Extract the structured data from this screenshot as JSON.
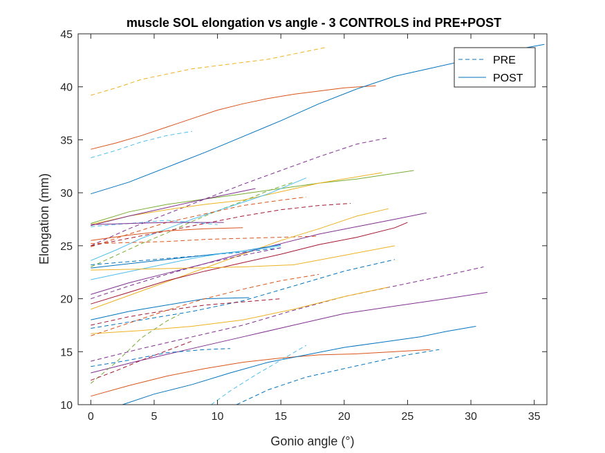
{
  "chart_data": {
    "type": "line",
    "title": "muscle SOL elongation vs angle - 3 CONTROLS ind PRE+POST",
    "xlabel": "Gonio angle (°)",
    "ylabel": "Elongation (mm)",
    "xlim": [
      -1,
      36
    ],
    "ylim": [
      10,
      45
    ],
    "xticks": [
      0,
      5,
      10,
      15,
      20,
      25,
      30,
      35
    ],
    "yticks": [
      10,
      15,
      20,
      25,
      30,
      35,
      40,
      45
    ],
    "xtick_labels": [
      "0",
      "5",
      "10",
      "15",
      "20",
      "25",
      "30",
      "35"
    ],
    "ytick_labels": [
      "10",
      "15",
      "20",
      "25",
      "30",
      "35",
      "40",
      "45"
    ],
    "grid": false,
    "legend": {
      "position": "top-right",
      "entries": [
        {
          "label": "PRE",
          "style": "dashed",
          "color": "#0072BD"
        },
        {
          "label": "POST",
          "style": "solid",
          "color": "#0072BD"
        }
      ]
    },
    "series": [
      {
        "style": "dashed",
        "color": "#EDB120",
        "x": [
          0,
          2,
          4,
          6,
          8,
          10,
          12,
          14,
          16,
          18.5
        ],
        "y": [
          39.2,
          39.9,
          40.7,
          41.2,
          41.7,
          42.0,
          42.3,
          42.6,
          43.1,
          43.7
        ]
      },
      {
        "style": "solid",
        "color": "#D95319",
        "x": [
          0,
          2,
          4,
          6,
          8,
          10,
          12,
          14,
          16,
          18,
          20,
          22.5
        ],
        "y": [
          34.1,
          34.7,
          35.4,
          36.2,
          37.0,
          37.8,
          38.4,
          38.9,
          39.3,
          39.6,
          39.9,
          40.1
        ]
      },
      {
        "style": "dashed",
        "color": "#4DBEEE",
        "x": [
          0,
          2,
          4,
          6,
          8
        ],
        "y": [
          33.3,
          34.0,
          34.8,
          35.4,
          35.8
        ]
      },
      {
        "style": "solid",
        "color": "#0072BD",
        "x": [
          0,
          3,
          6,
          9,
          12,
          15,
          18,
          21,
          24,
          27,
          30,
          33,
          35.8
        ],
        "y": [
          29.9,
          31.0,
          32.4,
          33.8,
          35.3,
          36.8,
          38.4,
          39.8,
          41.0,
          41.8,
          42.6,
          43.4,
          44.0
        ]
      },
      {
        "style": "dashed",
        "color": "#7E2F8E",
        "x": [
          0,
          3,
          6,
          9,
          12,
          15,
          18,
          21,
          23.5
        ],
        "y": [
          25.0,
          26.6,
          28.0,
          29.4,
          30.8,
          32.1,
          33.4,
          34.6,
          35.2
        ]
      },
      {
        "style": "solid",
        "color": "#77AC30",
        "x": [
          0,
          3,
          6,
          9,
          12,
          15,
          18,
          21,
          25.5
        ],
        "y": [
          27.1,
          28.2,
          28.9,
          29.4,
          29.9,
          30.4,
          30.9,
          31.3,
          32.1
        ]
      },
      {
        "style": "solid",
        "color": "#EDB120",
        "x": [
          0,
          3,
          6,
          9,
          12,
          15,
          18,
          21,
          23
        ],
        "y": [
          27.0,
          27.8,
          28.4,
          28.9,
          29.3,
          30.1,
          30.9,
          31.5,
          31.9
        ]
      },
      {
        "style": "solid",
        "color": "#7E2F8E",
        "x": [
          0,
          3,
          6,
          9,
          13
        ],
        "y": [
          26.9,
          27.8,
          28.6,
          29.4,
          30.4
        ]
      },
      {
        "style": "dashed",
        "color": "#77AC30",
        "x": [
          0,
          2,
          4,
          6,
          8,
          10,
          12,
          14,
          16
        ],
        "y": [
          23.0,
          24.1,
          25.2,
          26.2,
          27.3,
          28.3,
          29.2,
          30.2,
          31.0
        ]
      },
      {
        "style": "solid",
        "color": "#4DBEEE",
        "x": [
          0,
          2,
          4,
          6,
          8,
          10,
          12,
          14,
          17
        ],
        "y": [
          23.6,
          24.6,
          25.7,
          26.6,
          27.5,
          28.3,
          29.1,
          29.9,
          31.4
        ]
      },
      {
        "style": "dashed",
        "color": "#D95319",
        "x": [
          0,
          3,
          6,
          9,
          12,
          15,
          17
        ],
        "y": [
          24.9,
          26.1,
          27.2,
          28.0,
          28.8,
          29.3,
          29.6
        ]
      },
      {
        "style": "dashed",
        "color": "#A2142F",
        "x": [
          0,
          3,
          6,
          9,
          12,
          15,
          18,
          20.5
        ],
        "y": [
          25.0,
          25.7,
          26.4,
          27.1,
          27.8,
          28.4,
          28.8,
          29.0
        ]
      },
      {
        "style": "dashed",
        "color": "#4DBEEE",
        "x": [
          0,
          2,
          4,
          6,
          8,
          10
        ],
        "y": [
          26.8,
          27.0,
          27.2,
          27.4,
          27.2,
          27.0
        ]
      },
      {
        "style": "solid",
        "color": "#7E2F8E",
        "x": [
          0,
          3,
          6,
          9,
          10.5
        ],
        "y": [
          27.0,
          27.1,
          27.2,
          27.2,
          27.2
        ]
      },
      {
        "style": "solid",
        "color": "#D95319",
        "x": [
          0,
          3,
          6,
          9,
          12
        ],
        "y": [
          25.5,
          26.0,
          26.4,
          26.6,
          26.7
        ]
      },
      {
        "style": "dashed",
        "color": "#D95319",
        "x": [
          0,
          3,
          6,
          9,
          12,
          15,
          18
        ],
        "y": [
          25.2,
          25.3,
          25.4,
          25.6,
          25.7,
          25.8,
          25.9
        ]
      },
      {
        "style": "solid",
        "color": "#EDB120",
        "x": [
          0,
          3,
          6,
          9,
          12,
          15,
          18,
          21,
          23.5
        ],
        "y": [
          19.0,
          20.3,
          21.6,
          22.9,
          24.2,
          25.5,
          26.6,
          27.8,
          28.5
        ]
      },
      {
        "style": "solid",
        "color": "#7E2F8E",
        "x": [
          0,
          3,
          6,
          9,
          12,
          15,
          18,
          21,
          24,
          26.5
        ],
        "y": [
          20.4,
          21.5,
          22.4,
          23.3,
          24.3,
          25.2,
          26.1,
          26.8,
          27.5,
          28.1
        ]
      },
      {
        "style": "solid",
        "color": "#A2142F",
        "x": [
          0,
          3,
          6,
          9,
          12,
          15,
          18,
          21,
          24,
          25
        ],
        "y": [
          19.5,
          20.6,
          21.7,
          22.6,
          23.4,
          24.2,
          25.1,
          25.8,
          26.7,
          27.2
        ]
      },
      {
        "style": "solid",
        "color": "#0072BD",
        "x": [
          0,
          3,
          6,
          9,
          12,
          15
        ],
        "y": [
          22.9,
          23.3,
          23.7,
          24.1,
          24.5,
          25.1
        ]
      },
      {
        "style": "dashed",
        "color": "#0072BD",
        "x": [
          0,
          3,
          6,
          9,
          12,
          15
        ],
        "y": [
          23.2,
          23.5,
          23.8,
          24.1,
          24.4,
          24.8
        ]
      },
      {
        "style": "solid",
        "color": "#4DBEEE",
        "x": [
          0,
          2,
          4,
          6,
          8,
          10,
          12,
          14,
          15
        ],
        "y": [
          21.8,
          22.3,
          22.8,
          23.3,
          23.8,
          24.2,
          24.5,
          24.8,
          25.0
        ]
      },
      {
        "style": "dashed",
        "color": "#7E2F8E",
        "x": [
          0,
          3,
          6,
          9,
          12,
          15
        ],
        "y": [
          20.0,
          21.2,
          22.3,
          23.3,
          24.1,
          24.8
        ]
      },
      {
        "style": "solid",
        "color": "#EDB120",
        "x": [
          0,
          4,
          8,
          12,
          16,
          20,
          24
        ],
        "y": [
          22.7,
          22.8,
          22.9,
          23.0,
          23.2,
          24.1,
          25.0
        ]
      },
      {
        "style": "dashed",
        "color": "#0072BD",
        "x": [
          0,
          4,
          8,
          12,
          16,
          20,
          24
        ],
        "y": [
          17.2,
          18.0,
          18.8,
          19.8,
          21.2,
          22.6,
          23.7
        ]
      },
      {
        "style": "dashed",
        "color": "#7E2F8E",
        "x": [
          0,
          4,
          8,
          12,
          16,
          20,
          24,
          28,
          31
        ],
        "y": [
          14.1,
          15.3,
          16.4,
          17.5,
          18.9,
          20.2,
          21.2,
          22.2,
          23.0
        ]
      },
      {
        "style": "solid",
        "color": "#7E2F8E",
        "x": [
          0,
          4,
          8,
          12,
          16,
          20,
          24,
          28,
          31.3
        ],
        "y": [
          13.0,
          14.2,
          15.3,
          16.4,
          17.5,
          18.6,
          19.3,
          20.0,
          20.6
        ]
      },
      {
        "style": "solid",
        "color": "#EDB120",
        "x": [
          0,
          4,
          8,
          12,
          16,
          20,
          23.5
        ],
        "y": [
          16.7,
          17.0,
          17.4,
          18.0,
          19.0,
          20.2,
          21.1
        ]
      },
      {
        "style": "dashed",
        "color": "#A2142F",
        "x": [
          0,
          3,
          6,
          9,
          12,
          15
        ],
        "y": [
          17.5,
          18.3,
          18.9,
          19.4,
          19.7,
          20.0
        ]
      },
      {
        "style": "solid",
        "color": "#0072BD",
        "x": [
          0,
          3,
          6,
          9,
          12.5
        ],
        "y": [
          18.0,
          18.8,
          19.4,
          20.0,
          20.1
        ]
      },
      {
        "style": "dashed",
        "color": "#D95319",
        "x": [
          0,
          3,
          6,
          9,
          12,
          15,
          18
        ],
        "y": [
          16.5,
          17.7,
          18.9,
          20.0,
          20.9,
          21.7,
          22.3
        ]
      },
      {
        "style": "dashed",
        "color": "#77AC30",
        "x": [
          0,
          2,
          4,
          6,
          7
        ],
        "y": [
          12.0,
          14.0,
          16.3,
          17.9,
          18.5
        ]
      },
      {
        "style": "dashed",
        "color": "#0072BD",
        "x": [
          0,
          3,
          6,
          9,
          11
        ],
        "y": [
          13.6,
          14.2,
          14.9,
          15.2,
          15.3
        ]
      },
      {
        "style": "dashed",
        "color": "#A2142F",
        "x": [
          0,
          2,
          4,
          6,
          8
        ],
        "y": [
          12.3,
          13.2,
          14.2,
          15.1,
          16.0
        ]
      },
      {
        "style": "solid",
        "color": "#D95319",
        "x": [
          0,
          3,
          6,
          9,
          12,
          15,
          18,
          21,
          24,
          26.8
        ],
        "y": [
          10.8,
          11.8,
          12.7,
          13.4,
          14.0,
          14.4,
          14.7,
          14.8,
          15.0,
          15.2
        ]
      },
      {
        "style": "solid",
        "color": "#0072BD",
        "x": [
          2.5,
          5,
          8,
          11,
          14,
          17,
          20,
          23,
          26,
          28,
          30.4
        ],
        "y": [
          10.0,
          11.0,
          11.9,
          13.0,
          14.0,
          14.7,
          15.4,
          15.9,
          16.4,
          16.9,
          17.4
        ]
      },
      {
        "style": "dashed",
        "color": "#4DBEEE",
        "x": [
          9.5,
          11,
          13,
          15,
          17
        ],
        "y": [
          10.0,
          11.3,
          12.8,
          14.2,
          15.6
        ]
      },
      {
        "style": "dashed",
        "color": "#0072BD",
        "x": [
          11.5,
          14,
          17,
          20,
          23,
          25,
          27.5
        ],
        "y": [
          10.0,
          11.4,
          12.6,
          13.4,
          14.2,
          14.7,
          15.2
        ]
      }
    ]
  }
}
